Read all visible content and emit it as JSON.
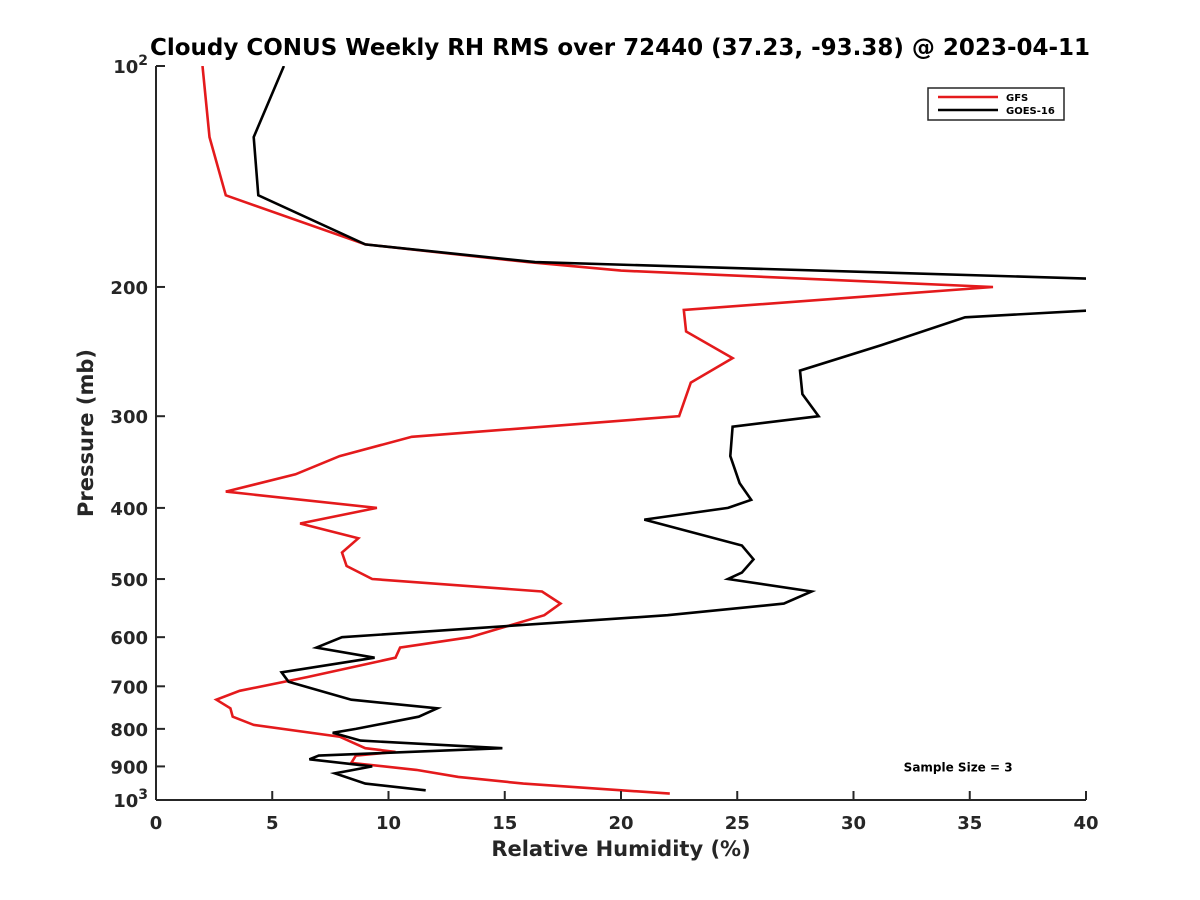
{
  "chart_data": {
    "type": "line",
    "title": "Cloudy CONUS Weekly RH RMS over 72440 (37.23, -93.38) @ 2023-04-11",
    "xlabel": "Relative Humidity (%)",
    "ylabel": "Pressure (mb)",
    "xlim": [
      0,
      40
    ],
    "ylim": [
      100,
      1000
    ],
    "yscale": "log",
    "yreversed": true,
    "grid": false,
    "legend_position": "top-right",
    "x_ticks": [
      {
        "value": 0,
        "label": "0"
      },
      {
        "value": 5,
        "label": "5"
      },
      {
        "value": 10,
        "label": "10"
      },
      {
        "value": 15,
        "label": "15"
      },
      {
        "value": 20,
        "label": "20"
      },
      {
        "value": 25,
        "label": "25"
      },
      {
        "value": 30,
        "label": "30"
      },
      {
        "value": 35,
        "label": "35"
      },
      {
        "value": 40,
        "label": "40"
      }
    ],
    "y_ticks": [
      {
        "value": 100,
        "base": "10",
        "exp": "2"
      },
      {
        "value": 200,
        "label": "200"
      },
      {
        "value": 300,
        "label": "300"
      },
      {
        "value": 400,
        "label": "400"
      },
      {
        "value": 500,
        "label": "500"
      },
      {
        "value": 600,
        "label": "600"
      },
      {
        "value": 700,
        "label": "700"
      },
      {
        "value": 800,
        "label": "800"
      },
      {
        "value": 900,
        "label": "900"
      },
      {
        "value": 1000,
        "base": "10",
        "exp": "3"
      }
    ],
    "series": [
      {
        "name": "GFS",
        "color": "#e41a1c",
        "points": [
          [
            2.0,
            100
          ],
          [
            2.3,
            125
          ],
          [
            3.0,
            150
          ],
          [
            9.0,
            175
          ],
          [
            16.0,
            185
          ],
          [
            20.0,
            190
          ],
          [
            36.0,
            200
          ],
          [
            22.7,
            215
          ],
          [
            22.8,
            230
          ],
          [
            24.8,
            250
          ],
          [
            23.0,
            270
          ],
          [
            22.5,
            300
          ],
          [
            11.0,
            320
          ],
          [
            7.9,
            340
          ],
          [
            6.0,
            360
          ],
          [
            3.0,
            380
          ],
          [
            9.5,
            400
          ],
          [
            6.2,
            420
          ],
          [
            8.7,
            440
          ],
          [
            8.0,
            460
          ],
          [
            8.2,
            480
          ],
          [
            9.3,
            500
          ],
          [
            16.6,
            520
          ],
          [
            17.4,
            540
          ],
          [
            16.7,
            560
          ],
          [
            13.5,
            600
          ],
          [
            10.5,
            620
          ],
          [
            10.3,
            640
          ],
          [
            6.5,
            680
          ],
          [
            3.6,
            710
          ],
          [
            2.6,
            730
          ],
          [
            3.2,
            750
          ],
          [
            3.3,
            770
          ],
          [
            4.2,
            790
          ],
          [
            7.9,
            820
          ],
          [
            9.0,
            850
          ],
          [
            10.3,
            860
          ],
          [
            8.6,
            870
          ],
          [
            8.4,
            890
          ],
          [
            11.2,
            910
          ],
          [
            13.0,
            930
          ],
          [
            15.8,
            950
          ],
          [
            22.1,
            980
          ]
        ]
      },
      {
        "name": "GOES-16",
        "color": "#000000",
        "points": [
          [
            5.5,
            100
          ],
          [
            4.2,
            125
          ],
          [
            4.4,
            150
          ],
          [
            9.0,
            175
          ],
          [
            16.3,
            185
          ],
          [
            40.5,
            195
          ],
          [
            40.5,
            215
          ],
          [
            34.8,
            220
          ],
          [
            31.2,
            240
          ],
          [
            27.7,
            260
          ],
          [
            27.8,
            280
          ],
          [
            28.5,
            300
          ],
          [
            24.8,
            310
          ],
          [
            24.7,
            340
          ],
          [
            25.1,
            370
          ],
          [
            25.6,
            390
          ],
          [
            24.6,
            400
          ],
          [
            21.0,
            415
          ],
          [
            25.2,
            450
          ],
          [
            25.7,
            470
          ],
          [
            25.2,
            490
          ],
          [
            24.6,
            500
          ],
          [
            28.2,
            520
          ],
          [
            27.0,
            540
          ],
          [
            22.0,
            560
          ],
          [
            8.0,
            600
          ],
          [
            6.9,
            620
          ],
          [
            9.4,
            640
          ],
          [
            5.4,
            670
          ],
          [
            5.7,
            690
          ],
          [
            8.4,
            730
          ],
          [
            12.1,
            750
          ],
          [
            11.3,
            770
          ],
          [
            8.6,
            800
          ],
          [
            7.6,
            810
          ],
          [
            8.8,
            830
          ],
          [
            14.9,
            850
          ],
          [
            7.0,
            870
          ],
          [
            6.6,
            880
          ],
          [
            9.3,
            900
          ],
          [
            7.7,
            920
          ],
          [
            9.0,
            950
          ],
          [
            11.6,
            970
          ]
        ]
      }
    ],
    "annotations": [
      {
        "text": "Sample Size = 3",
        "x": 34.5,
        "y": 900
      }
    ]
  }
}
